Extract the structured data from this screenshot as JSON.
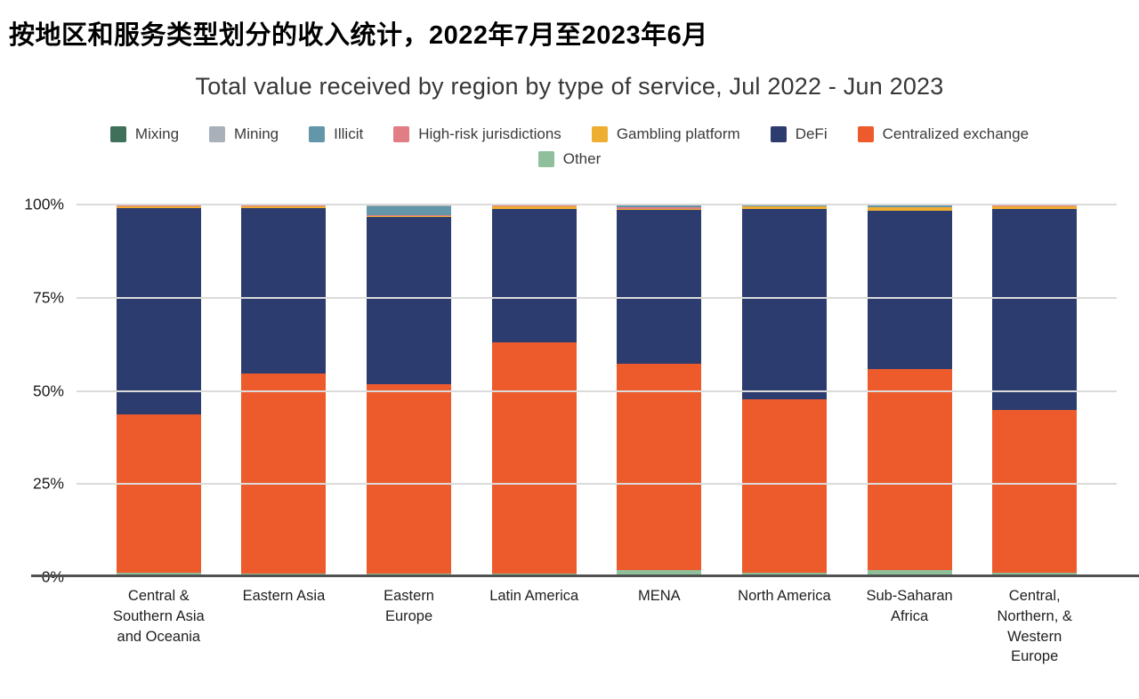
{
  "page": {
    "heading_zh": "按地区和服务类型划分的收入统计，2022年7月至2023年6月"
  },
  "chart_data": {
    "type": "bar",
    "stacked": true,
    "title": "Total value received by region by type of service, Jul 2022 - Jun 2023",
    "ylim": [
      0,
      100
    ],
    "grid": true,
    "legend_position": "top",
    "yticks": [
      {
        "value": 0,
        "label": "0%"
      },
      {
        "value": 25,
        "label": "25%"
      },
      {
        "value": 50,
        "label": "50%"
      },
      {
        "value": 75,
        "label": "75%"
      },
      {
        "value": 100,
        "label": "100%"
      }
    ],
    "categories": [
      "Central & Southern Asia and Oceania",
      "Eastern Asia",
      "Eastern Europe",
      "Latin America",
      "MENA",
      "North America",
      "Sub-Saharan Africa",
      "Central, Northern, & Western Europe"
    ],
    "category_labels": [
      "Central &\nSouthern Asia\nand Oceania",
      "Eastern Asia",
      "Eastern\nEurope",
      "Latin America",
      "MENA",
      "North America",
      "Sub-Saharan\nAfrica",
      "Central,\nNorthern, &\nWestern\nEurope"
    ],
    "legend_rows": [
      [
        "Mixing",
        "Mining",
        "Illicit",
        "High-risk jurisdictions",
        "Gambling platform",
        "DeFi",
        "Centralized exchange"
      ],
      [
        "Other"
      ]
    ],
    "stack_order_bottom_to_top": [
      "Other",
      "Centralized exchange",
      "DeFi",
      "Gambling platform",
      "High-risk jurisdictions",
      "Illicit",
      "Mining",
      "Mixing"
    ],
    "series": [
      {
        "name": "Mixing",
        "color": "#41705a",
        "values": [
          0.1,
          0.1,
          0.2,
          0.1,
          0.1,
          0.1,
          0.1,
          0.1
        ]
      },
      {
        "name": "Mining",
        "color": "#a9b0ba",
        "values": [
          0.1,
          0.1,
          0.2,
          0.1,
          0.1,
          0.1,
          0.2,
          0.1
        ]
      },
      {
        "name": "Illicit",
        "color": "#6496a9",
        "values": [
          0.1,
          0.1,
          2.4,
          0.1,
          0.5,
          0.2,
          0.3,
          0.1
        ]
      },
      {
        "name": "High-risk jurisdictions",
        "color": "#e17e85",
        "values": [
          0.1,
          0.1,
          0.2,
          0.1,
          0.5,
          0.1,
          0.1,
          0.1
        ]
      },
      {
        "name": "Gambling platform",
        "color": "#eeae32",
        "values": [
          0.6,
          0.6,
          0.3,
          0.7,
          0.2,
          0.6,
          1.0,
          0.8
        ]
      },
      {
        "name": "DeFi",
        "color": "#2d3c6e",
        "values": [
          55.3,
          44.3,
          44.9,
          35.9,
          41.3,
          51.2,
          42.5,
          53.9
        ]
      },
      {
        "name": "Centralized exchange",
        "color": "#ed5b2d",
        "values": [
          42.5,
          53.7,
          50.8,
          62.0,
          55.5,
          46.5,
          54.0,
          43.7
        ]
      },
      {
        "name": "Other",
        "color": "#8fc09b",
        "values": [
          1.2,
          1.0,
          1.0,
          1.0,
          1.8,
          1.2,
          1.8,
          1.2
        ]
      }
    ]
  }
}
